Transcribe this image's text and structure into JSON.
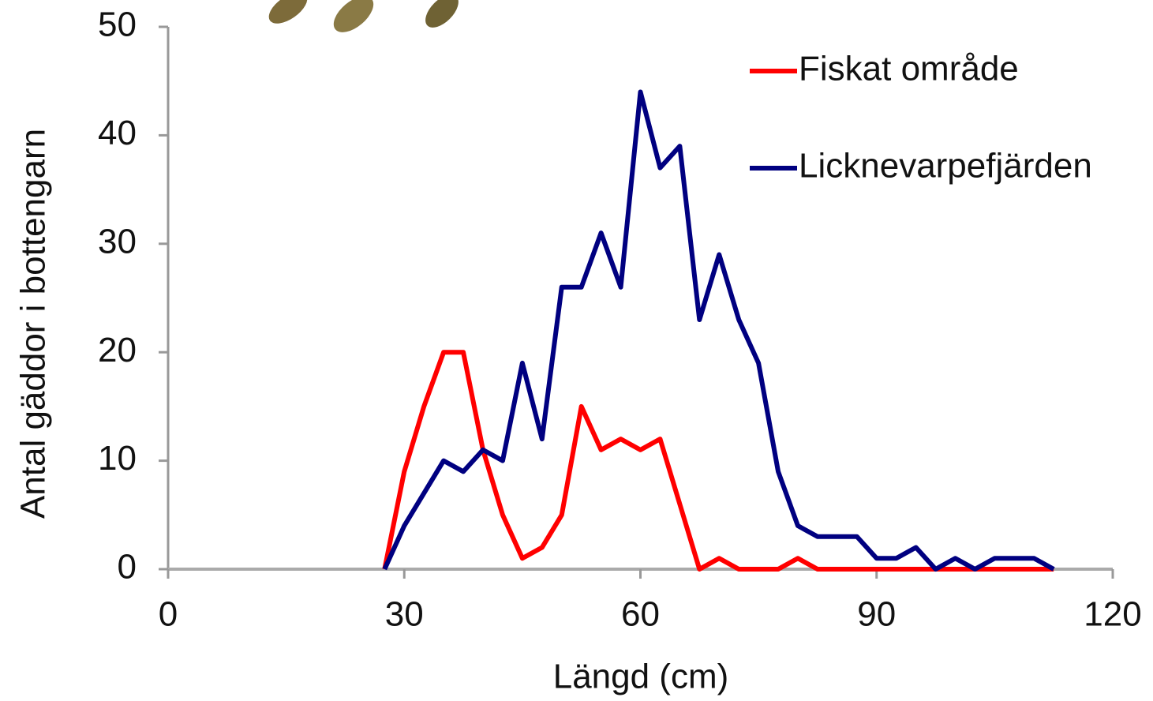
{
  "chart_data": {
    "type": "line",
    "x_label": "Längd (cm)",
    "y_label": "Antal gäddor i bottengarn",
    "x": [
      27.5,
      30,
      32.5,
      35,
      37.5,
      40,
      42.5,
      45,
      47.5,
      50,
      52.5,
      55,
      57.5,
      60,
      62.5,
      65,
      67.5,
      70,
      72.5,
      75,
      77.5,
      80,
      82.5,
      85,
      87.5,
      90,
      92.5,
      95,
      97.5,
      100,
      102.5,
      105,
      107.5,
      110,
      112.5
    ],
    "series": [
      {
        "name": "Fiskat område",
        "color": "#ff0000",
        "values": [
          0,
          9,
          15,
          20,
          20,
          11,
          5,
          1,
          2,
          5,
          15,
          11,
          12,
          11,
          12,
          6,
          0,
          1,
          0,
          0,
          0,
          1,
          0,
          0,
          0,
          0,
          0,
          0,
          0,
          0,
          0,
          0,
          0,
          0,
          0
        ]
      },
      {
        "name": "Licknevarpefjärden",
        "color": "#000080",
        "values": [
          0,
          4,
          7,
          10,
          9,
          11,
          10,
          19,
          12,
          26,
          26,
          31,
          26,
          44,
          37,
          39,
          23,
          29,
          23,
          19,
          9,
          4,
          3,
          3,
          3,
          1,
          1,
          2,
          0,
          1,
          0,
          1,
          1,
          1,
          0
        ]
      }
    ],
    "xlim": [
      0,
      120
    ],
    "xticks": [
      0,
      30,
      60,
      90,
      120
    ],
    "ylim": [
      0,
      50
    ],
    "yticks": [
      0,
      10,
      20,
      30,
      40,
      50
    ],
    "legend": "top-right"
  }
}
